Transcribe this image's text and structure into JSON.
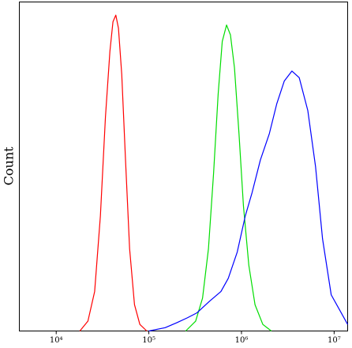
{
  "chart_data": {
    "type": "line",
    "ylabel": "Count",
    "xscale": "log",
    "xlim": [
      4000,
      14000000
    ],
    "ylim": [
      0,
      100
    ],
    "xticks": [
      {
        "value": 10000,
        "label": "10⁴"
      },
      {
        "value": 100000,
        "label": "10⁵"
      },
      {
        "value": 1000000,
        "label": "10⁶"
      },
      {
        "value": 10000000,
        "label": "10⁷"
      }
    ],
    "series": [
      {
        "color": "#ff0000",
        "x": [
          18000,
          22000,
          26000,
          30000,
          34000,
          38000,
          41000,
          44000,
          47000,
          51000,
          56000,
          62000,
          70000,
          80000,
          95000
        ],
        "values": [
          0,
          3,
          12,
          35,
          65,
          85,
          94,
          96,
          92,
          78,
          52,
          25,
          8,
          2,
          0
        ]
      },
      {
        "color": "#00dd00",
        "x": [
          250000,
          320000,
          380000,
          440000,
          500000,
          560000,
          620000,
          690000,
          760000,
          840000,
          940000,
          1050000,
          1200000,
          1400000,
          1700000,
          2100000
        ],
        "values": [
          0,
          3,
          10,
          25,
          48,
          72,
          88,
          93,
          90,
          80,
          60,
          38,
          20,
          8,
          2,
          0
        ]
      },
      {
        "color": "#0000ff",
        "x": [
          100000,
          150000,
          200000,
          260000,
          330000,
          450000,
          600000,
          720000,
          900000,
          1100000,
          1300000,
          1600000,
          2000000,
          2400000,
          2900000,
          3500000,
          4200000,
          5200000,
          6300000,
          7500000,
          9300000,
          14000000
        ],
        "values": [
          0,
          1,
          2.5,
          4,
          5.5,
          9,
          12,
          16,
          24,
          35,
          42,
          52,
          60,
          69,
          76,
          79,
          77,
          67,
          50,
          28,
          11,
          2
        ]
      }
    ]
  }
}
